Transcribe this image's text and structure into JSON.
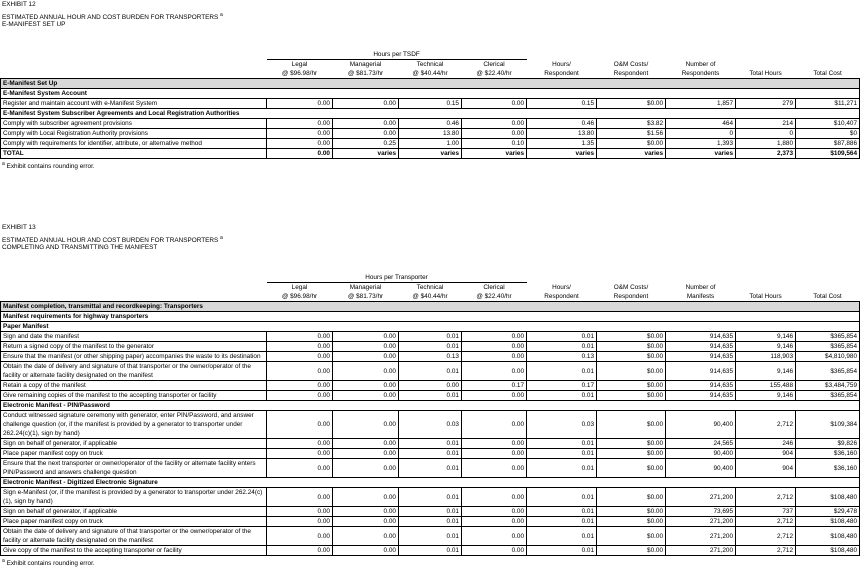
{
  "exhibits": [
    {
      "label": "EXHIBIT 12",
      "title": "ESTIMATED ANNUAL HOUR AND COST BURDEN FOR TRANSPORTERS",
      "title_note": "a",
      "subtitle": "E-MANIFEST SET UP",
      "group_header": "Hours per TSDF",
      "columns": [
        [
          "Legal",
          "@ $96.98/hr"
        ],
        [
          "Managerial",
          "@ $81.73/hr"
        ],
        [
          "Technical",
          "@ $40.44/hr"
        ],
        [
          "Clerical",
          "@ $22.40/hr"
        ],
        [
          "Hours/",
          "Respondent"
        ],
        [
          "O&M Costs/",
          "Respondent"
        ],
        [
          "Number of",
          "Respondents"
        ],
        [
          "Total Hours"
        ],
        [
          "Total Cost"
        ]
      ],
      "rows": [
        {
          "heading": "E-Manifest Set Up"
        },
        {
          "subheading": "E-Manifest System Account"
        },
        {
          "label": "Register and maintain account with e-Manifest System",
          "cells": [
            "0.00",
            "0.00",
            "0.15",
            "0.00",
            "0.15",
            "$0.00",
            "1,857",
            "279",
            "$11,271"
          ]
        },
        {
          "subheading": "E-Manifest System Subscriber Agreements and Local Registration Authorities"
        },
        {
          "label": "Comply with subscriber agreement provisions",
          "cells": [
            "0.00",
            "0.00",
            "0.46",
            "0.00",
            "0.46",
            "$3.82",
            "464",
            "214",
            "$10,407"
          ]
        },
        {
          "label": "Comply with Local Registration Authority provisions",
          "cells": [
            "0.00",
            "0.00",
            "13.80",
            "0.00",
            "13.80",
            "$1.56",
            "0",
            "0",
            "$0"
          ]
        },
        {
          "label": "Comply with requirements for identifier, attribute, or alternative method",
          "cells": [
            "0.00",
            "0.25",
            "1.00",
            "0.10",
            "1.35",
            "$0.00",
            "1,393",
            "1,880",
            "$87,886"
          ]
        },
        {
          "total": "TOTAL",
          "cells": [
            "0.00",
            "varies",
            "varies",
            "varies",
            "varies",
            "varies",
            "varies",
            "2,373",
            "$109,564"
          ]
        }
      ],
      "footnote": {
        "mark": "a",
        "text": "Exhibit contains rounding error."
      }
    },
    {
      "label": "EXHIBIT 13",
      "title": "ESTIMATED ANNUAL HOUR AND COST BURDEN FOR TRANSPORTERS",
      "title_note": "a",
      "subtitle": "COMPLETING AND TRANSMITTING THE MANIFEST",
      "group_header": "Hours per Transporter",
      "columns": [
        [
          "Legal",
          "@ $96.98/hr"
        ],
        [
          "Managerial",
          "@ $81.73/hr"
        ],
        [
          "Technical",
          "@ $40.44/hr"
        ],
        [
          "Clerical",
          "@ $22.40/hr"
        ],
        [
          "Hours/",
          "Respondent"
        ],
        [
          "O&M Costs/",
          "Respondent"
        ],
        [
          "Number of",
          "Manifests"
        ],
        [
          "Total Hours"
        ],
        [
          "Total Cost"
        ]
      ],
      "rows": [
        {
          "heading": "Manifest completion, transmittal and recordkeeping:  Transporters"
        },
        {
          "subheading": "Manifest requirements for highway transporters"
        },
        {
          "subheading": "Paper Manifest"
        },
        {
          "label": "Sign and date the manifest",
          "cells": [
            "0.00",
            "0.00",
            "0.01",
            "0.00",
            "0.01",
            "$0.00",
            "914,635",
            "9,146",
            "$365,854"
          ]
        },
        {
          "label": "Return a signed copy of the manifest to the generator",
          "cells": [
            "0.00",
            "0.00",
            "0.01",
            "0.00",
            "0.01",
            "$0.00",
            "914,635",
            "9,146",
            "$365,854"
          ]
        },
        {
          "label": "Ensure that the manifest (or other shipping paper) accompanies the waste to its destination",
          "cells": [
            "0.00",
            "0.00",
            "0.13",
            "0.00",
            "0.13",
            "$0.00",
            "914,635",
            "118,903",
            "$4,810,980"
          ]
        },
        {
          "label": "Obtain the date of delivery and signature of that transporter or the owner/operator of the facility or alternate facility designated on the manifest",
          "cells": [
            "0.00",
            "0.00",
            "0.01",
            "0.00",
            "0.01",
            "$0.00",
            "914,635",
            "9,146",
            "$365,854"
          ]
        },
        {
          "label": "Retain a copy of the manifest",
          "cells": [
            "0.00",
            "0.00",
            "0.00",
            "0.17",
            "0.17",
            "$0.00",
            "914,635",
            "155,488",
            "$3,484,759"
          ]
        },
        {
          "label": "Give remaining copies of the manifest to the accepting transporter or facility",
          "cells": [
            "0.00",
            "0.00",
            "0.01",
            "0.00",
            "0.01",
            "$0.00",
            "914,635",
            "9,146",
            "$365,854"
          ]
        },
        {
          "subheading": "Electronic Manifest - PIN/Password"
        },
        {
          "label": "Conduct witnessed  signature ceremony with generator, enter PIN/Password, and answer challenge question (or, if the manifest is provided by a generator to transporter under 262.24(c)(1), sign by hand)",
          "cells": [
            "0.00",
            "0.00",
            "0.03",
            "0.00",
            "0.03",
            "$0.00",
            "90,400",
            "2,712",
            "$109,384"
          ]
        },
        {
          "label": "Sign on behalf of generator, if applicable",
          "cells": [
            "0.00",
            "0.00",
            "0.01",
            "0.00",
            "0.01",
            "$0.00",
            "24,565",
            "246",
            "$9,826"
          ]
        },
        {
          "label": "Place paper manifest copy on truck",
          "cells": [
            "0.00",
            "0.00",
            "0.01",
            "0.00",
            "0.01",
            "$0.00",
            "90,400",
            "904",
            "$36,160"
          ]
        },
        {
          "label": "Ensure that the next transporter or owner/operator of the facility or alternate facility enters PIN/Password and answers challenge question",
          "cells": [
            "0.00",
            "0.00",
            "0.01",
            "0.00",
            "0.01",
            "$0.00",
            "90,400",
            "904",
            "$36,160"
          ]
        },
        {
          "subheading": "Electronic Manifest - Digitized Electronic Signature"
        },
        {
          "label": "Sign e-Manifest (or, if the manifest is provided by a generator to transporter under 262.24(c)(1), sign by hand)",
          "cells": [
            "0.00",
            "0.00",
            "0.01",
            "0.00",
            "0.01",
            "$0.00",
            "271,200",
            "2,712",
            "$108,480"
          ]
        },
        {
          "label": "Sign on behalf of generator, if applicable",
          "cells": [
            "0.00",
            "0.00",
            "0.01",
            "0.00",
            "0.01",
            "$0.00",
            "73,695",
            "737",
            "$29,478"
          ]
        },
        {
          "label": "Place paper manifest copy on truck",
          "cells": [
            "0.00",
            "0.00",
            "0.01",
            "0.00",
            "0.01",
            "$0.00",
            "271,200",
            "2,712",
            "$108,480"
          ]
        },
        {
          "label": "Obtain the date of delivery and signature of that transporter or the owner/operator of the facility or alternate facility designated on the manifest",
          "cells": [
            "0.00",
            "0.00",
            "0.01",
            "0.00",
            "0.01",
            "$0.00",
            "271,200",
            "2,712",
            "$108,480"
          ]
        },
        {
          "label": "Give copy of the manifest to the accepting transporter or facility",
          "cells": [
            "0.00",
            "0.00",
            "0.01",
            "0.00",
            "0.01",
            "$0.00",
            "271,200",
            "2,712",
            "$108,480"
          ]
        }
      ],
      "footnote": {
        "mark": "a",
        "text": "Exhibit contains rounding error."
      }
    }
  ]
}
